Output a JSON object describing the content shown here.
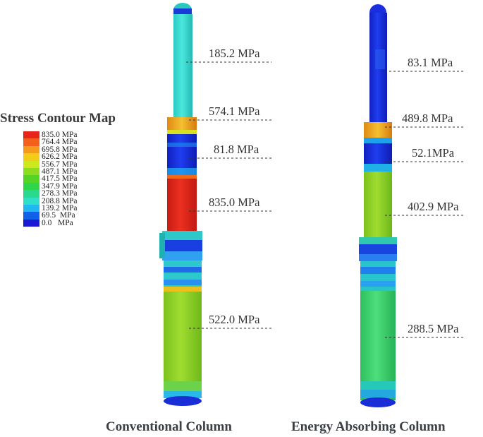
{
  "legend": {
    "title": "Stress Contour Map",
    "entries": [
      {
        "label": "835.0 MPa",
        "color": "#e8251a"
      },
      {
        "label": "764.4 MPa",
        "color": "#f2601c"
      },
      {
        "label": "695.8 MPa",
        "color": "#f59a1b"
      },
      {
        "label": "626.2 MPa",
        "color": "#f2cc16"
      },
      {
        "label": "556.7 MPa",
        "color": "#cde81d"
      },
      {
        "label": "487.1 MPa",
        "color": "#8fdb1f"
      },
      {
        "label": "417.5 MPa",
        "color": "#55d425"
      },
      {
        "label": "347.9 MPa",
        "color": "#2fd54a"
      },
      {
        "label": "278.3 MPa",
        "color": "#28d98e"
      },
      {
        "label": "208.8 MPa",
        "color": "#2ee0c8"
      },
      {
        "label": "139.2 MPa",
        "color": "#1fb8ef"
      },
      {
        "label": "69.5  MPa",
        "color": "#1160e8"
      },
      {
        "label": "0.0   MPa",
        "color": "#1a1ad6"
      }
    ]
  },
  "columns": [
    {
      "caption": "Conventional Column",
      "annotations": [
        "185.2 MPa",
        "574.1 MPa",
        "81.8 MPa",
        "835.0 MPa",
        "522.0 MPa"
      ]
    },
    {
      "caption": "Energy Absorbing Column",
      "annotations": [
        "83.1 MPa",
        "489.8 MPa",
        "52.1MPa",
        "402.9 MPa",
        "288.5 MPa"
      ]
    }
  ],
  "colors": {
    "cyan": "#3fe0d0",
    "blue": "#1a2ee0",
    "red": "#e0261c",
    "green": "#8fd42a",
    "green2": "#3fd66a",
    "orange": "#f0a020"
  }
}
